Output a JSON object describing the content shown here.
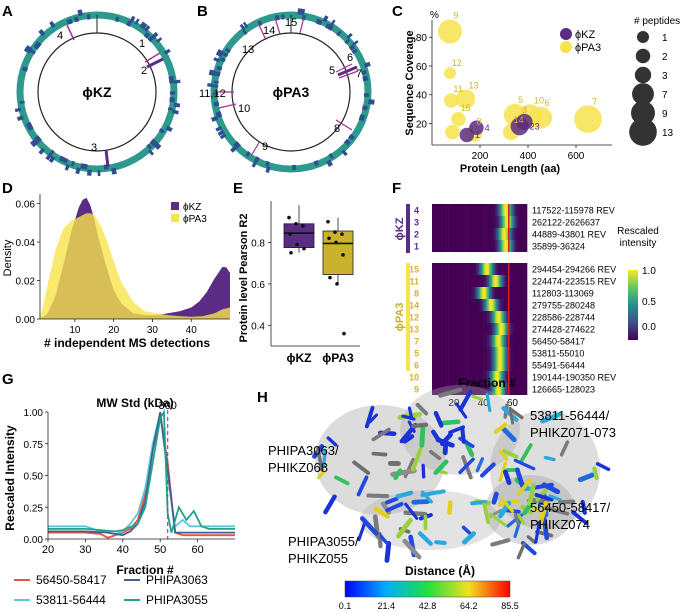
{
  "panel_letters": {
    "a": "A",
    "b": "B",
    "c": "C",
    "d": "D",
    "e": "E",
    "f": "F",
    "g": "G",
    "h": "H"
  },
  "panel_a": {
    "center_label": "ϕKZ",
    "site_labels": [
      "4",
      "1",
      "2",
      "3"
    ]
  },
  "panel_b": {
    "center_label": "ϕPA3",
    "site_labels": [
      "15",
      "14",
      "13",
      "5",
      "6",
      "7",
      "11,12",
      "10",
      "9",
      "8"
    ]
  },
  "colors": {
    "phiKZ": "#5b2c83",
    "phiPA3": "#f7e34b",
    "phiPA3_dark": "#d4b52a",
    "ring": "#2e9a8e",
    "ring_mark": "#2f4f8f",
    "box_kz": "#5b2c83",
    "box_pa3": "#c9b22c",
    "grey_mol": "#9a9a9a"
  },
  "chart_data": [
    {
      "id": "C",
      "type": "scatter",
      "xlabel": "Protein Length (aa)",
      "ylabel": "Sequence Coverage",
      "ylabel_unit": "%",
      "xlim": [
        0,
        750
      ],
      "ylim": [
        5,
        92
      ],
      "xticks": [
        "200",
        "400",
        "600"
      ],
      "yticks": [
        "20",
        "40",
        "60",
        "80"
      ],
      "legend": [
        "ϕKZ",
        "ϕPA3"
      ],
      "size_legend_title": "# peptides",
      "size_legend": [
        "1",
        "2",
        "3",
        "7",
        "9",
        "13"
      ],
      "series": [
        {
          "name": "ϕKZ",
          "points": [
            {
              "label": "1",
              "x": 145,
              "y": 12,
              "peptides": 2
            },
            {
              "label": "4",
              "x": 185,
              "y": 17,
              "peptides": 2
            },
            {
              "label": "23",
              "x": 365,
              "y": 18,
              "peptides": 4
            },
            {
              "label": "",
              "x": 385,
              "y": 21,
              "peptides": 3
            }
          ]
        },
        {
          "name": "ϕPA3",
          "points": [
            {
              "label": "9",
              "x": 75,
              "y": 84,
              "peptides": 9
            },
            {
              "label": "12",
              "x": 75,
              "y": 55,
              "peptides": 1
            },
            {
              "label": "11",
              "x": 80,
              "y": 36,
              "peptides": 2
            },
            {
              "label": "13",
              "x": 140,
              "y": 37,
              "peptides": 5
            },
            {
              "label": "15",
              "x": 110,
              "y": 23,
              "peptides": 2
            },
            {
              "label": "8",
              "x": 175,
              "y": 13,
              "peptides": 3
            },
            {
              "label": "",
              "x": 85,
              "y": 14,
              "peptides": 2
            },
            {
              "label": "5",
              "x": 345,
              "y": 26,
              "peptides": 7
            },
            {
              "label": "10",
              "x": 410,
              "y": 25,
              "peptides": 9
            },
            {
              "label": "6",
              "x": 455,
              "y": 24,
              "peptides": 7
            },
            {
              "label": "14",
              "x": 330,
              "y": 14,
              "peptides": 3
            },
            {
              "label": "3",
              "x": 365,
              "y": 21,
              "peptides": 3
            },
            {
              "label": "7",
              "x": 650,
              "y": 23,
              "peptides": 13
            }
          ]
        }
      ]
    },
    {
      "id": "D",
      "type": "area",
      "xlabel": "# independent MS detections",
      "ylabel": "Density",
      "xlim": [
        1,
        50
      ],
      "ylim": [
        0,
        0.065
      ],
      "xticks": [
        "10",
        "20",
        "30",
        "40"
      ],
      "yticks": [
        "0.00",
        "0.02",
        "0.04",
        "0.06"
      ],
      "legend": [
        "ϕKZ",
        "ϕPA3"
      ],
      "series": [
        {
          "name": "ϕKZ",
          "x": [
            1,
            3,
            5,
            7,
            9,
            11,
            12,
            13,
            14,
            15,
            16,
            18,
            20,
            22,
            25,
            28,
            31,
            34,
            37,
            40,
            42,
            44,
            46,
            48,
            49,
            50
          ],
          "y": [
            0.0,
            0.003,
            0.012,
            0.028,
            0.045,
            0.058,
            0.062,
            0.063,
            0.059,
            0.052,
            0.043,
            0.028,
            0.015,
            0.008,
            0.003,
            0.002,
            0.002,
            0.003,
            0.004,
            0.006,
            0.009,
            0.014,
            0.021,
            0.027,
            0.027,
            0.024
          ]
        },
        {
          "name": "ϕPA3",
          "x": [
            1,
            3,
            5,
            7,
            9,
            11,
            12,
            13,
            14,
            15,
            16,
            17,
            18,
            20,
            22,
            25,
            28,
            31,
            34,
            37,
            40,
            43,
            46,
            48,
            50
          ],
          "y": [
            0.0,
            0.018,
            0.036,
            0.047,
            0.051,
            0.053,
            0.054,
            0.055,
            0.055,
            0.054,
            0.051,
            0.047,
            0.042,
            0.03,
            0.019,
            0.009,
            0.004,
            0.003,
            0.002,
            0.0015,
            0.0012,
            0.0015,
            0.003,
            0.005,
            0.006
          ]
        }
      ]
    },
    {
      "id": "E",
      "type": "box",
      "ylabel": "Protein level Pearson R2",
      "ylim": [
        0.3,
        1.0
      ],
      "yticks": [
        "0.4",
        "0.6",
        "0.8"
      ],
      "categories": [
        "ϕKZ",
        "ϕPA3"
      ],
      "boxes": [
        {
          "name": "ϕKZ",
          "min": 0.75,
          "q1": 0.775,
          "median": 0.845,
          "q3": 0.89,
          "max": 0.98,
          "points": [
            0.92,
            0.89,
            0.88,
            0.84,
            0.79,
            0.77,
            0.75
          ]
        },
        {
          "name": "ϕPA3",
          "min": 0.6,
          "q1": 0.645,
          "median": 0.795,
          "q3": 0.855,
          "max": 0.92,
          "points": [
            0.9,
            0.85,
            0.84,
            0.82,
            0.8,
            0.74,
            0.63,
            0.6,
            0.36
          ]
        }
      ]
    },
    {
      "id": "F",
      "type": "heatmap",
      "xlabel": "Fraction #",
      "xticks": [
        "20",
        "40",
        "60"
      ],
      "xlim": [
        5,
        70
      ],
      "colorbar_title": "Rescaled intensity",
      "colorbar_ticks": [
        "1.0",
        "0.5",
        "0.0"
      ],
      "group_kz": "ϕKZ",
      "group_pa3": "ϕPA3",
      "kz_rows": [
        {
          "id": "4",
          "range": "117522-115978 REV",
          "peak": 55
        },
        {
          "id": "3",
          "range": "262122-2626637",
          "peak": 56
        },
        {
          "id": "2",
          "range": "44889-43801 REV",
          "peak": 54
        },
        {
          "id": "1",
          "range": "35899-36324",
          "peak": 55
        }
      ],
      "pa3_rows": [
        {
          "id": "15",
          "range": "294454-294266 REV",
          "peak": 42
        },
        {
          "id": "11",
          "range": "224474-223515 REV",
          "peak": 48
        },
        {
          "id": "8",
          "range": "112803-113069",
          "peak": 40
        },
        {
          "id": "14",
          "range": "279755-280248",
          "peak": 45
        },
        {
          "id": "12",
          "range": "228586-228744",
          "peak": 50
        },
        {
          "id": "13",
          "range": "274428-274622",
          "peak": 52
        },
        {
          "id": "7",
          "range": "56450-58417",
          "peak": 50
        },
        {
          "id": "5",
          "range": "53811-55010",
          "peak": 51
        },
        {
          "id": "6",
          "range": "55491-56444",
          "peak": 51
        },
        {
          "id": "10",
          "range": "190144-190350 REV",
          "peak": 49
        },
        {
          "id": "9",
          "range": "126665-128023",
          "peak": 50
        }
      ]
    },
    {
      "id": "G",
      "type": "line",
      "title": "MW Std (kDa)",
      "marker_label": "300",
      "marker_x": 52,
      "xlabel": "Fraction #",
      "ylabel": "Rescaled Intensity",
      "xlim": [
        20,
        70
      ],
      "ylim": [
        0,
        1.0
      ],
      "xticks": [
        "20",
        "30",
        "40",
        "50",
        "60"
      ],
      "yticks": [
        "0.00",
        "0.25",
        "0.50",
        "0.75",
        "1.00"
      ],
      "series": [
        {
          "name": "56450-58417",
          "color": "#e8533f",
          "x": [
            20,
            30,
            34,
            36,
            40,
            42,
            44,
            46,
            48,
            50,
            52,
            54,
            56,
            70
          ],
          "y": [
            0.05,
            0.05,
            0.04,
            0.01,
            0.05,
            0.08,
            0.15,
            0.35,
            0.7,
            0.98,
            0.6,
            0.05,
            0.03,
            0.03
          ]
        },
        {
          "name": "53811-56444",
          "color": "#5bc8d8",
          "x": [
            20,
            30,
            34,
            38,
            40,
            42,
            44,
            46,
            48,
            50,
            52,
            54,
            56,
            58,
            70
          ],
          "y": [
            0.1,
            0.1,
            0.06,
            0.04,
            0.06,
            0.12,
            0.2,
            0.4,
            0.75,
            0.99,
            0.5,
            0.1,
            0.15,
            0.1,
            0.1
          ]
        },
        {
          "name": "PHIPA3063",
          "color": "#3f5f99",
          "x": [
            20,
            30,
            36,
            40,
            42,
            44,
            46,
            48,
            50,
            52,
            54,
            56,
            70
          ],
          "y": [
            0.06,
            0.06,
            0.05,
            0.03,
            0.06,
            0.12,
            0.3,
            0.7,
            1.0,
            0.55,
            0.05,
            0.05,
            0.05
          ]
        },
        {
          "name": "PHIPA3055",
          "color": "#24a08a",
          "x": [
            20,
            30,
            38,
            40,
            44,
            46,
            48,
            50,
            51,
            52,
            53,
            55,
            57,
            59,
            61,
            63,
            70
          ],
          "y": [
            0.08,
            0.08,
            0.06,
            0.07,
            0.12,
            0.25,
            0.6,
            0.95,
            1.0,
            0.2,
            0.05,
            0.25,
            0.15,
            0.22,
            0.1,
            0.08,
            0.08
          ]
        }
      ]
    }
  ],
  "panel_h": {
    "labels": [
      "PHIPA3063/\nPHIKZ068",
      "53811-56444/\nPHIKZ071-073",
      "56450-58417/\nPHIKZ074",
      "PHIPA3055/\nPHIKZ055"
    ],
    "colorbar_title": "Distance (Å)",
    "colorbar_ticks": [
      "0.1",
      "21.4",
      "42.8",
      "64.2",
      "85.5"
    ]
  }
}
